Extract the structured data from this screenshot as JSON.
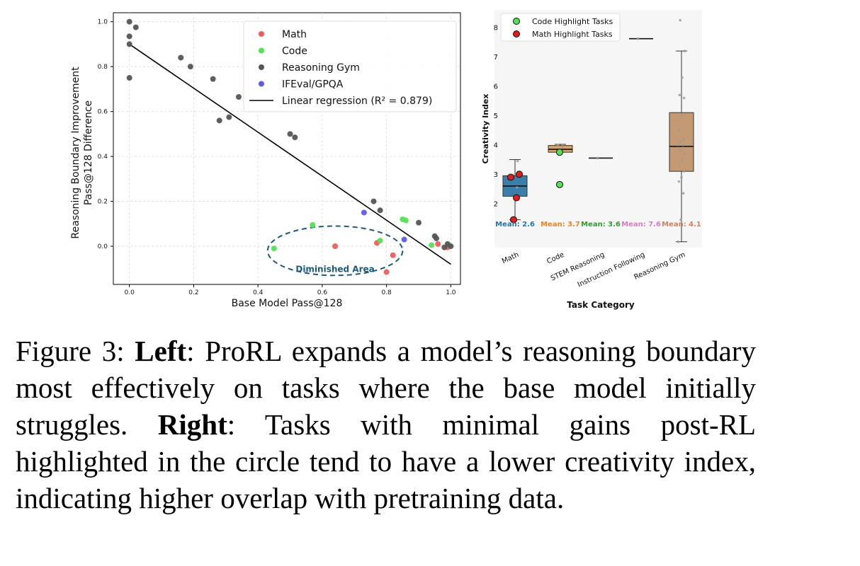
{
  "chart_data": [
    {
      "type": "scatter",
      "title": "",
      "xlabel": "Base Model Pass@128",
      "ylabel_lines": [
        "Reasoning Boundary Improvement",
        "Pass@128 Difference"
      ],
      "xlim": [
        -0.05,
        1.03
      ],
      "ylim": [
        -0.17,
        1.04
      ],
      "xticks": [
        "0.0",
        "0.2",
        "0.4",
        "0.6",
        "0.8",
        "1.0"
      ],
      "yticks": [
        "0.0",
        "0.2",
        "0.4",
        "0.6",
        "0.8",
        "1.0"
      ],
      "grid": true,
      "legend_position": "top-right",
      "series": [
        {
          "name": "Math",
          "color": "#f25b5b",
          "points": [
            [
              0.64,
              0.0
            ],
            [
              0.77,
              0.015
            ],
            [
              0.82,
              -0.04
            ],
            [
              0.8,
              -0.115
            ],
            [
              0.96,
              0.01
            ],
            [
              0.99,
              -0.005
            ]
          ]
        },
        {
          "name": "Code",
          "color": "#55e055",
          "points": [
            [
              0.45,
              -0.01
            ],
            [
              0.57,
              0.095
            ],
            [
              0.78,
              0.025
            ],
            [
              0.85,
              0.12
            ],
            [
              0.86,
              0.115
            ],
            [
              0.94,
              0.005
            ]
          ]
        },
        {
          "name": "Reasoning Gym",
          "color": "#555555",
          "points": [
            [
              0.0,
              1.0
            ],
            [
              0.0,
              0.935
            ],
            [
              0.02,
              0.975
            ],
            [
              0.0,
              0.9
            ],
            [
              0.0,
              0.75
            ],
            [
              0.16,
              0.84
            ],
            [
              0.19,
              0.8
            ],
            [
              0.26,
              0.745
            ],
            [
              0.28,
              0.56
            ],
            [
              0.31,
              0.575
            ],
            [
              0.34,
              0.665
            ],
            [
              0.5,
              0.5
            ],
            [
              0.515,
              0.485
            ],
            [
              0.76,
              0.2
            ],
            [
              0.78,
              0.16
            ],
            [
              0.9,
              0.105
            ],
            [
              0.95,
              0.045
            ],
            [
              0.955,
              0.035
            ],
            [
              0.98,
              -0.005
            ],
            [
              0.99,
              0.01
            ],
            [
              1.0,
              0.0
            ]
          ]
        },
        {
          "name": "IFEval/GPQA",
          "color": "#5b5bf2",
          "points": [
            [
              0.73,
              0.15
            ],
            [
              0.855,
              0.03
            ]
          ]
        }
      ],
      "regression": {
        "label": "Linear regression (R² = 0.879)",
        "slope": -0.98,
        "intercept": 0.9,
        "x_range": [
          0.0,
          1.0
        ]
      },
      "annotation": {
        "text": "Diminished Area",
        "center": [
          0.64,
          -0.02
        ],
        "x_radius": 0.21,
        "y_radius": 0.11
      }
    },
    {
      "type": "box",
      "title": "",
      "xlabel": "Task Category",
      "ylabel": "Creativity Index",
      "ylim": [
        0.5,
        8.6
      ],
      "yticks": [
        "2",
        "3",
        "4",
        "5",
        "6",
        "7",
        "8"
      ],
      "legend_position": "top-left",
      "legend": [
        {
          "label": "Code Highlight Tasks",
          "color": "#55e055"
        },
        {
          "label": "Math Highlight Tasks",
          "color": "#e01c1c"
        }
      ],
      "categories": [
        {
          "name": "Math",
          "color": "#3a7fac",
          "label_color": "#1f77b4",
          "mean_label": "Mean: 2.6",
          "q1": 2.25,
          "median": 2.6,
          "q3": 2.95,
          "whisker_low": 1.45,
          "whisker_high": 3.5,
          "points": [
            1.45,
            2.2,
            2.55,
            2.85,
            3.0,
            3.45
          ],
          "highlight_math": [
            1.45,
            2.2,
            2.9,
            3.0
          ],
          "highlight_code": []
        },
        {
          "name": "Code",
          "color": "#d9a067",
          "label_color": "#ff7f0e",
          "mean_label": "Mean: 3.7",
          "q1": 3.75,
          "median": 3.85,
          "q3": 3.98,
          "whisker_low": 3.75,
          "whisker_high": 4.02,
          "points": [
            3.75,
            3.85,
            3.95,
            4.0
          ],
          "highlight_math": [],
          "highlight_code": [
            3.75,
            2.65
          ]
        },
        {
          "name": "STEM Reasoning",
          "color": "#8c8c8c",
          "label_color": "#2ca02c",
          "mean_label": "Mean: 3.6",
          "q1": 3.55,
          "median": 3.55,
          "q3": 3.55,
          "whisker_low": 3.55,
          "whisker_high": 3.55,
          "points": [
            3.55
          ],
          "highlight_math": [],
          "highlight_code": []
        },
        {
          "name": "Instruction Following",
          "color": "#8c8c8c",
          "label_color": "#e377c2",
          "mean_label": "Mean: 7.6",
          "q1": 7.62,
          "median": 7.62,
          "q3": 7.62,
          "whisker_low": 7.62,
          "whisker_high": 7.62,
          "points": [
            7.62
          ],
          "highlight_math": [],
          "highlight_code": []
        },
        {
          "name": "Reasoning Gym",
          "color": "#c49a74",
          "label_color": "#d2825e",
          "mean_label": "Mean: 4.1",
          "q1": 3.1,
          "median": 3.95,
          "q3": 5.1,
          "whisker_low": 0.7,
          "whisker_high": 7.2,
          "points": [
            0.7,
            1.45,
            2.35,
            2.75,
            2.9,
            3.1,
            3.3,
            3.5,
            3.7,
            3.8,
            3.9,
            4.0,
            4.1,
            4.2,
            4.5,
            5.0,
            5.6,
            5.7,
            6.3,
            7.2,
            8.25
          ],
          "highlight_math": [],
          "highlight_code": []
        }
      ]
    }
  ],
  "caption": {
    "figure_label": "Figure 3: ",
    "left_label": "Left",
    "left_text": ": ProRL expands a model’s reasoning boundary most effectively on tasks where the base model initially struggles. ",
    "right_label": "Right",
    "right_text": ": Tasks with minimal gains post-RL highlighted in the circle tend to have a lower creativity index, indicating higher overlap with pretraining data."
  }
}
